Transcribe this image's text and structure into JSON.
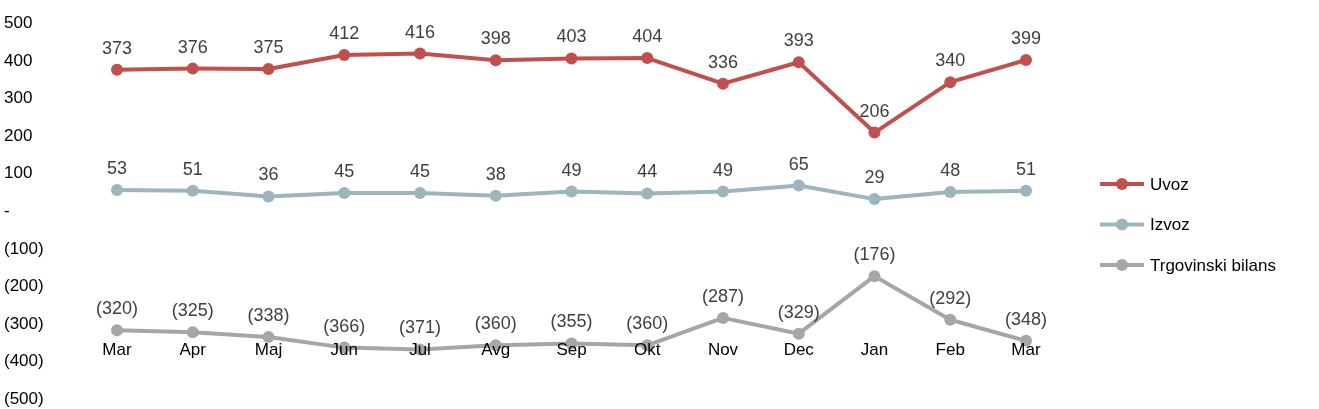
{
  "chart_data": {
    "type": "line",
    "categories": [
      "Mar",
      "Apr",
      "Maj",
      "Jun",
      "Jul",
      "Avg",
      "Sep",
      "Okt",
      "Nov",
      "Dec",
      "Jan",
      "Feb",
      "Mar"
    ],
    "series": [
      {
        "name": "Uvoz",
        "color": "#c0504d",
        "values": [
          373,
          376,
          375,
          412,
          416,
          398,
          403,
          404,
          336,
          393,
          206,
          340,
          399
        ],
        "value_labels": [
          "373",
          "376",
          "375",
          "412",
          "416",
          "398",
          "403",
          "404",
          "336",
          "393",
          "206",
          "340",
          "399"
        ]
      },
      {
        "name": "Izvoz",
        "color": "#9cb5be",
        "values": [
          53,
          51,
          36,
          45,
          45,
          38,
          49,
          44,
          49,
          65,
          29,
          48,
          51
        ],
        "value_labels": [
          "53",
          "51",
          "36",
          "45",
          "45",
          "38",
          "49",
          "44",
          "49",
          "65",
          "29",
          "48",
          "51"
        ]
      },
      {
        "name": "Trgovinski bilans",
        "color": "#a6a6a6",
        "values": [
          -320,
          -325,
          -338,
          -366,
          -371,
          -360,
          -355,
          -360,
          -287,
          -329,
          -176,
          -292,
          -348
        ],
        "value_labels": [
          "(320)",
          "(325)",
          "(338)",
          "(366)",
          "(371)",
          "(360)",
          "(355)",
          "(360)",
          "(287)",
          "(329)",
          "(176)",
          "(292)",
          "(348)"
        ]
      }
    ],
    "ylim": [
      -500,
      500
    ],
    "yticks": [
      500,
      400,
      300,
      200,
      100,
      {
        "value": 0,
        "label": "-"
      },
      {
        "value": -100,
        "label": "(100)"
      },
      {
        "value": -200,
        "label": "(200)"
      },
      {
        "value": -300,
        "label": "(300)"
      },
      {
        "value": -400,
        "label": "(400)"
      },
      {
        "value": -500,
        "label": "(500)"
      }
    ],
    "marker": "circle",
    "line_style": "solid",
    "legend": "right",
    "grid": false
  }
}
